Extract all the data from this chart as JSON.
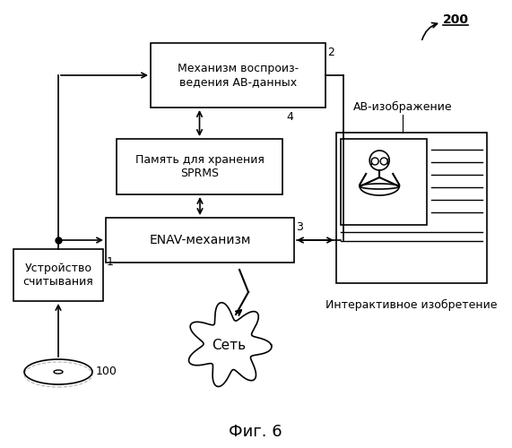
{
  "title": "Фиг. 6",
  "label_200": "200",
  "label_2": "2",
  "label_4": "4",
  "label_3": "3",
  "label_1": "1",
  "label_100": "100",
  "box_av_text": "Механизм воспроиз-\nведения АВ-данных",
  "box_sprms_text": "Память для хранения\nSPRMS",
  "box_enav_text": "ENAV-механизм",
  "box_reader_text": "Устройство\nсчитывания",
  "cloud_text": "Сеть",
  "av_image_label": "АВ-изображение",
  "interactive_label": "Интерактивное изобретение",
  "background": "#ffffff",
  "box_color": "#ffffff",
  "box_edge": "#000000",
  "line_color": "#000000",
  "font_size_box": 9,
  "font_size_label": 9,
  "font_size_title": 13
}
